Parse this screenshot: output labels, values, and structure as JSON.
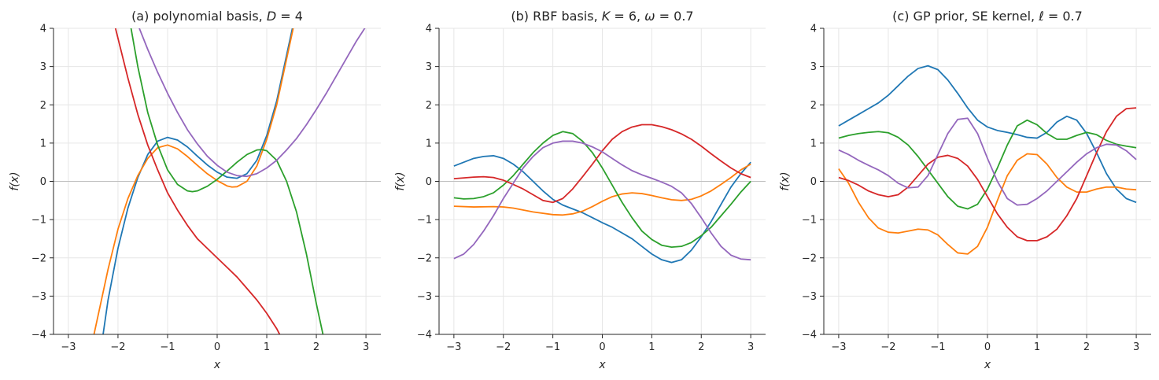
{
  "figure": {
    "background": "#ffffff",
    "grid_color": "#e6e6e6",
    "zero_line_color": "#bfbfbf",
    "series_colors": [
      "#1f77b4",
      "#ff7f0e",
      "#2ca02c",
      "#d62728",
      "#9467bd"
    ]
  },
  "chart_data": [
    {
      "type": "line",
      "title": "(a) polynomial basis, D = 4",
      "title_parts": {
        "prefix": "(a) polynomial basis, ",
        "var": "D",
        "suffix": " = 4"
      },
      "xlabel": "x",
      "ylabel": "f(x)",
      "xlim": [
        -3.3,
        3.3
      ],
      "ylim": [
        -4,
        4
      ],
      "xticks": [
        -3,
        -2,
        -1,
        0,
        1,
        2,
        3
      ],
      "xtick_labels": [
        "−3",
        "−2",
        "−1",
        "0",
        "1",
        "2",
        "3"
      ],
      "yticks": [
        -4,
        -3,
        -2,
        -1,
        0,
        1,
        2,
        3,
        4
      ],
      "ytick_labels": [
        "−4",
        "−3",
        "−2",
        "−1",
        "0",
        "1",
        "2",
        "3",
        "4"
      ],
      "grid": true,
      "zero_line": true,
      "series": [
        {
          "color": "#1f77b4",
          "x": [
            -2.3,
            -2.2,
            -2.0,
            -1.8,
            -1.6,
            -1.4,
            -1.2,
            -1.0,
            -0.8,
            -0.6,
            -0.4,
            -0.2,
            0.0,
            0.2,
            0.4,
            0.6,
            0.8,
            1.0,
            1.2,
            1.4,
            1.55,
            1.6
          ],
          "y": [
            -4.0,
            -3.1,
            -1.75,
            -0.7,
            0.1,
            0.7,
            1.05,
            1.15,
            1.08,
            0.9,
            0.66,
            0.43,
            0.24,
            0.11,
            0.08,
            0.2,
            0.55,
            1.2,
            2.1,
            3.3,
            4.2,
            4.5
          ]
        },
        {
          "color": "#ff7f0e",
          "x": [
            -2.5,
            -2.4,
            -2.2,
            -2.0,
            -1.8,
            -1.6,
            -1.4,
            -1.2,
            -1.0,
            -0.8,
            -0.6,
            -0.4,
            -0.2,
            0.0,
            0.2,
            0.3,
            0.4,
            0.6,
            0.8,
            1.0,
            1.2,
            1.4,
            1.55,
            1.6
          ],
          "y": [
            -4.1,
            -3.5,
            -2.3,
            -1.25,
            -0.45,
            0.15,
            0.6,
            0.88,
            0.95,
            0.85,
            0.65,
            0.42,
            0.2,
            0.02,
            -0.12,
            -0.15,
            -0.14,
            0.0,
            0.4,
            1.1,
            2.0,
            3.2,
            4.1,
            4.4
          ]
        },
        {
          "color": "#2ca02c",
          "x": [
            -1.75,
            -1.6,
            -1.4,
            -1.2,
            -1.0,
            -0.8,
            -0.6,
            -0.5,
            -0.4,
            -0.2,
            0.0,
            0.2,
            0.4,
            0.6,
            0.8,
            0.9,
            1.0,
            1.2,
            1.4,
            1.6,
            1.8,
            2.0,
            2.15
          ],
          "y": [
            4.1,
            3.0,
            1.8,
            0.95,
            0.3,
            -0.08,
            -0.25,
            -0.27,
            -0.25,
            -0.13,
            0.05,
            0.27,
            0.5,
            0.7,
            0.82,
            0.83,
            0.8,
            0.55,
            0.0,
            -0.8,
            -1.9,
            -3.2,
            -4.1
          ]
        },
        {
          "color": "#d62728",
          "x": [
            -2.05,
            -1.8,
            -1.6,
            -1.4,
            -1.2,
            -1.0,
            -0.8,
            -0.6,
            -0.4,
            -0.2,
            0.0,
            0.2,
            0.4,
            0.6,
            0.8,
            1.0,
            1.2,
            1.3
          ],
          "y": [
            4.0,
            2.7,
            1.75,
            0.95,
            0.3,
            -0.3,
            -0.75,
            -1.15,
            -1.5,
            -1.75,
            -2.0,
            -2.25,
            -2.5,
            -2.8,
            -3.1,
            -3.45,
            -3.85,
            -4.1
          ]
        },
        {
          "color": "#9467bd",
          "x": [
            -1.6,
            -1.4,
            -1.2,
            -1.0,
            -0.8,
            -0.6,
            -0.4,
            -0.2,
            0.0,
            0.2,
            0.4,
            0.6,
            0.8,
            1.0,
            1.2,
            1.4,
            1.6,
            1.8,
            2.0,
            2.2,
            2.4,
            2.6,
            2.8,
            3.0
          ],
          "y": [
            4.1,
            3.45,
            2.85,
            2.3,
            1.8,
            1.35,
            0.98,
            0.66,
            0.42,
            0.24,
            0.15,
            0.13,
            0.2,
            0.35,
            0.55,
            0.82,
            1.12,
            1.48,
            1.88,
            2.3,
            2.75,
            3.2,
            3.65,
            4.05
          ]
        }
      ]
    },
    {
      "type": "line",
      "title": "(b) RBF basis, K = 6, ω = 0.7",
      "title_parts": {
        "prefix": "(b) RBF basis, ",
        "var": "K",
        "middle": " = 6, ",
        "var2": "ω",
        "suffix": " = 0.7"
      },
      "xlabel": "x",
      "ylabel": "f(x)",
      "xlim": [
        -3.3,
        3.3
      ],
      "ylim": [
        -4,
        4
      ],
      "xticks": [
        -3,
        -2,
        -1,
        0,
        1,
        2,
        3
      ],
      "xtick_labels": [
        "−3",
        "−2",
        "−1",
        "0",
        "1",
        "2",
        "3"
      ],
      "yticks": [
        -4,
        -3,
        -2,
        -1,
        0,
        1,
        2,
        3,
        4
      ],
      "ytick_labels": [
        "−4",
        "−3",
        "−2",
        "−1",
        "0",
        "1",
        "2",
        "3",
        "4"
      ],
      "grid": true,
      "zero_line": true,
      "series": [
        {
          "color": "#1f77b4",
          "x": [
            -3.0,
            -2.8,
            -2.6,
            -2.4,
            -2.2,
            -2.0,
            -1.8,
            -1.6,
            -1.4,
            -1.2,
            -1.0,
            -0.8,
            -0.6,
            -0.4,
            -0.2,
            0.0,
            0.2,
            0.4,
            0.6,
            0.8,
            1.0,
            1.2,
            1.4,
            1.6,
            1.8,
            2.0,
            2.2,
            2.4,
            2.6,
            2.8,
            3.0
          ],
          "y": [
            0.4,
            0.5,
            0.6,
            0.65,
            0.67,
            0.6,
            0.45,
            0.25,
            0.0,
            -0.25,
            -0.47,
            -0.62,
            -0.72,
            -0.82,
            -0.95,
            -1.08,
            -1.2,
            -1.35,
            -1.5,
            -1.7,
            -1.9,
            -2.05,
            -2.12,
            -2.05,
            -1.8,
            -1.45,
            -1.05,
            -0.6,
            -0.15,
            0.2,
            0.5
          ]
        },
        {
          "color": "#ff7f0e",
          "x": [
            -3.0,
            -2.6,
            -2.2,
            -2.0,
            -1.8,
            -1.4,
            -1.0,
            -0.8,
            -0.6,
            -0.4,
            -0.2,
            0.0,
            0.2,
            0.4,
            0.6,
            0.8,
            1.0,
            1.2,
            1.4,
            1.6,
            1.8,
            2.0,
            2.2,
            2.4,
            2.6,
            2.8,
            3.0
          ],
          "y": [
            -0.65,
            -0.67,
            -0.66,
            -0.67,
            -0.7,
            -0.8,
            -0.87,
            -0.88,
            -0.85,
            -0.78,
            -0.66,
            -0.52,
            -0.4,
            -0.33,
            -0.3,
            -0.32,
            -0.37,
            -0.43,
            -0.48,
            -0.5,
            -0.47,
            -0.38,
            -0.25,
            -0.08,
            0.1,
            0.3,
            0.45
          ]
        },
        {
          "color": "#2ca02c",
          "x": [
            -3.0,
            -2.8,
            -2.6,
            -2.4,
            -2.2,
            -2.0,
            -1.8,
            -1.6,
            -1.4,
            -1.2,
            -1.0,
            -0.8,
            -0.6,
            -0.4,
            -0.2,
            0.0,
            0.2,
            0.4,
            0.6,
            0.8,
            1.0,
            1.2,
            1.4,
            1.6,
            1.8,
            2.0,
            2.2,
            2.4,
            2.6,
            2.8,
            3.0
          ],
          "y": [
            -0.43,
            -0.46,
            -0.45,
            -0.4,
            -0.3,
            -0.1,
            0.15,
            0.45,
            0.75,
            1.0,
            1.2,
            1.3,
            1.25,
            1.05,
            0.75,
            0.35,
            -0.1,
            -0.55,
            -0.95,
            -1.3,
            -1.52,
            -1.67,
            -1.72,
            -1.7,
            -1.6,
            -1.42,
            -1.2,
            -0.9,
            -0.6,
            -0.28,
            0.0
          ]
        },
        {
          "color": "#d62728",
          "x": [
            -3.0,
            -2.8,
            -2.6,
            -2.4,
            -2.2,
            -2.0,
            -1.8,
            -1.6,
            -1.4,
            -1.2,
            -1.0,
            -0.8,
            -0.6,
            -0.4,
            -0.2,
            0.0,
            0.2,
            0.4,
            0.6,
            0.8,
            1.0,
            1.2,
            1.4,
            1.6,
            1.8,
            2.0,
            2.2,
            2.4,
            2.6,
            2.8,
            3.0
          ],
          "y": [
            0.07,
            0.09,
            0.11,
            0.12,
            0.1,
            0.03,
            -0.08,
            -0.2,
            -0.35,
            -0.5,
            -0.55,
            -0.45,
            -0.2,
            0.12,
            0.45,
            0.8,
            1.1,
            1.3,
            1.42,
            1.48,
            1.48,
            1.43,
            1.35,
            1.24,
            1.1,
            0.92,
            0.72,
            0.53,
            0.35,
            0.2,
            0.1
          ]
        },
        {
          "color": "#9467bd",
          "x": [
            -3.0,
            -2.8,
            -2.6,
            -2.4,
            -2.2,
            -2.0,
            -1.8,
            -1.6,
            -1.4,
            -1.2,
            -1.0,
            -0.8,
            -0.6,
            -0.4,
            -0.2,
            0.0,
            0.2,
            0.4,
            0.6,
            0.8,
            1.0,
            1.2,
            1.4,
            1.6,
            1.8,
            2.0,
            2.2,
            2.4,
            2.6,
            2.8,
            3.0
          ],
          "y": [
            -2.02,
            -1.9,
            -1.65,
            -1.3,
            -0.9,
            -0.45,
            -0.05,
            0.35,
            0.65,
            0.88,
            1.0,
            1.05,
            1.05,
            1.0,
            0.9,
            0.77,
            0.6,
            0.43,
            0.28,
            0.17,
            0.08,
            -0.02,
            -0.13,
            -0.3,
            -0.58,
            -0.95,
            -1.35,
            -1.7,
            -1.93,
            -2.03,
            -2.05
          ]
        }
      ]
    },
    {
      "type": "line",
      "title": "(c) GP prior, SE kernel, ℓ = 0.7",
      "title_parts": {
        "prefix": "(c) GP prior, SE kernel, ",
        "var": "ℓ",
        "suffix": " = 0.7"
      },
      "xlabel": "x",
      "ylabel": "f(x)",
      "xlim": [
        -3.3,
        3.3
      ],
      "ylim": [
        -4,
        4
      ],
      "xticks": [
        -3,
        -2,
        -1,
        0,
        1,
        2,
        3
      ],
      "xtick_labels": [
        "−3",
        "−2",
        "−1",
        "0",
        "1",
        "2",
        "3"
      ],
      "yticks": [
        -4,
        -3,
        -2,
        -1,
        0,
        1,
        2,
        3,
        4
      ],
      "ytick_labels": [
        "−4",
        "−3",
        "−2",
        "−1",
        "0",
        "1",
        "2",
        "3",
        "4"
      ],
      "grid": true,
      "zero_line": true,
      "series": [
        {
          "color": "#1f77b4",
          "x": [
            -3.0,
            -2.8,
            -2.6,
            -2.4,
            -2.2,
            -2.0,
            -1.8,
            -1.6,
            -1.4,
            -1.2,
            -1.0,
            -0.8,
            -0.6,
            -0.4,
            -0.2,
            0.0,
            0.2,
            0.4,
            0.6,
            0.8,
            1.0,
            1.2,
            1.4,
            1.6,
            1.8,
            2.0,
            2.2,
            2.4,
            2.6,
            2.8,
            3.0
          ],
          "y": [
            1.45,
            1.6,
            1.75,
            1.9,
            2.05,
            2.25,
            2.5,
            2.75,
            2.95,
            3.02,
            2.92,
            2.65,
            2.3,
            1.92,
            1.6,
            1.42,
            1.33,
            1.28,
            1.22,
            1.15,
            1.13,
            1.28,
            1.55,
            1.7,
            1.6,
            1.25,
            0.75,
            0.2,
            -0.2,
            -0.45,
            -0.55
          ]
        },
        {
          "color": "#ff7f0e",
          "x": [
            -3.0,
            -2.8,
            -2.6,
            -2.4,
            -2.2,
            -2.0,
            -1.8,
            -1.6,
            -1.4,
            -1.2,
            -1.0,
            -0.8,
            -0.6,
            -0.4,
            -0.2,
            0.0,
            0.2,
            0.4,
            0.6,
            0.8,
            1.0,
            1.2,
            1.4,
            1.6,
            1.8,
            2.0,
            2.2,
            2.4,
            2.6,
            2.8,
            3.0
          ],
          "y": [
            0.33,
            -0.05,
            -0.55,
            -0.95,
            -1.22,
            -1.33,
            -1.35,
            -1.3,
            -1.25,
            -1.27,
            -1.4,
            -1.65,
            -1.87,
            -1.9,
            -1.7,
            -1.2,
            -0.5,
            0.15,
            0.55,
            0.72,
            0.7,
            0.45,
            0.1,
            -0.15,
            -0.28,
            -0.28,
            -0.2,
            -0.15,
            -0.15,
            -0.2,
            -0.22
          ]
        },
        {
          "color": "#2ca02c",
          "x": [
            -3.0,
            -2.8,
            -2.6,
            -2.4,
            -2.2,
            -2.0,
            -1.8,
            -1.6,
            -1.4,
            -1.2,
            -1.0,
            -0.8,
            -0.6,
            -0.4,
            -0.2,
            0.0,
            0.2,
            0.4,
            0.6,
            0.8,
            1.0,
            1.2,
            1.4,
            1.6,
            1.8,
            2.0,
            2.2,
            2.4,
            2.6,
            2.8,
            3.0
          ],
          "y": [
            1.13,
            1.2,
            1.25,
            1.28,
            1.3,
            1.27,
            1.15,
            0.95,
            0.65,
            0.3,
            -0.05,
            -0.4,
            -0.65,
            -0.72,
            -0.6,
            -0.2,
            0.35,
            0.95,
            1.45,
            1.6,
            1.48,
            1.25,
            1.1,
            1.1,
            1.2,
            1.28,
            1.22,
            1.07,
            0.97,
            0.92,
            0.88
          ]
        },
        {
          "color": "#d62728",
          "x": [
            -3.0,
            -2.8,
            -2.6,
            -2.4,
            -2.2,
            -2.0,
            -1.8,
            -1.6,
            -1.4,
            -1.2,
            -1.0,
            -0.8,
            -0.6,
            -0.4,
            -0.2,
            0.0,
            0.2,
            0.4,
            0.6,
            0.8,
            1.0,
            1.2,
            1.4,
            1.6,
            1.8,
            2.0,
            2.2,
            2.4,
            2.6,
            2.8,
            3.0
          ],
          "y": [
            0.1,
            0.02,
            -0.1,
            -0.25,
            -0.35,
            -0.4,
            -0.35,
            -0.15,
            0.15,
            0.45,
            0.63,
            0.68,
            0.6,
            0.4,
            0.05,
            -0.4,
            -0.85,
            -1.2,
            -1.45,
            -1.55,
            -1.55,
            -1.45,
            -1.25,
            -0.9,
            -0.45,
            0.15,
            0.75,
            1.3,
            1.7,
            1.9,
            1.92
          ]
        },
        {
          "color": "#9467bd",
          "x": [
            -3.0,
            -2.8,
            -2.6,
            -2.4,
            -2.2,
            -2.0,
            -1.8,
            -1.6,
            -1.4,
            -1.2,
            -1.0,
            -0.8,
            -0.6,
            -0.4,
            -0.2,
            0.0,
            0.2,
            0.4,
            0.6,
            0.8,
            1.0,
            1.2,
            1.4,
            1.6,
            1.8,
            2.0,
            2.2,
            2.4,
            2.6,
            2.8,
            3.0
          ],
          "y": [
            0.82,
            0.7,
            0.55,
            0.42,
            0.3,
            0.15,
            -0.05,
            -0.17,
            -0.15,
            0.15,
            0.7,
            1.25,
            1.62,
            1.65,
            1.25,
            0.6,
            0.0,
            -0.45,
            -0.62,
            -0.6,
            -0.45,
            -0.25,
            0.0,
            0.25,
            0.5,
            0.72,
            0.88,
            0.97,
            0.95,
            0.8,
            0.57
          ]
        }
      ]
    }
  ]
}
